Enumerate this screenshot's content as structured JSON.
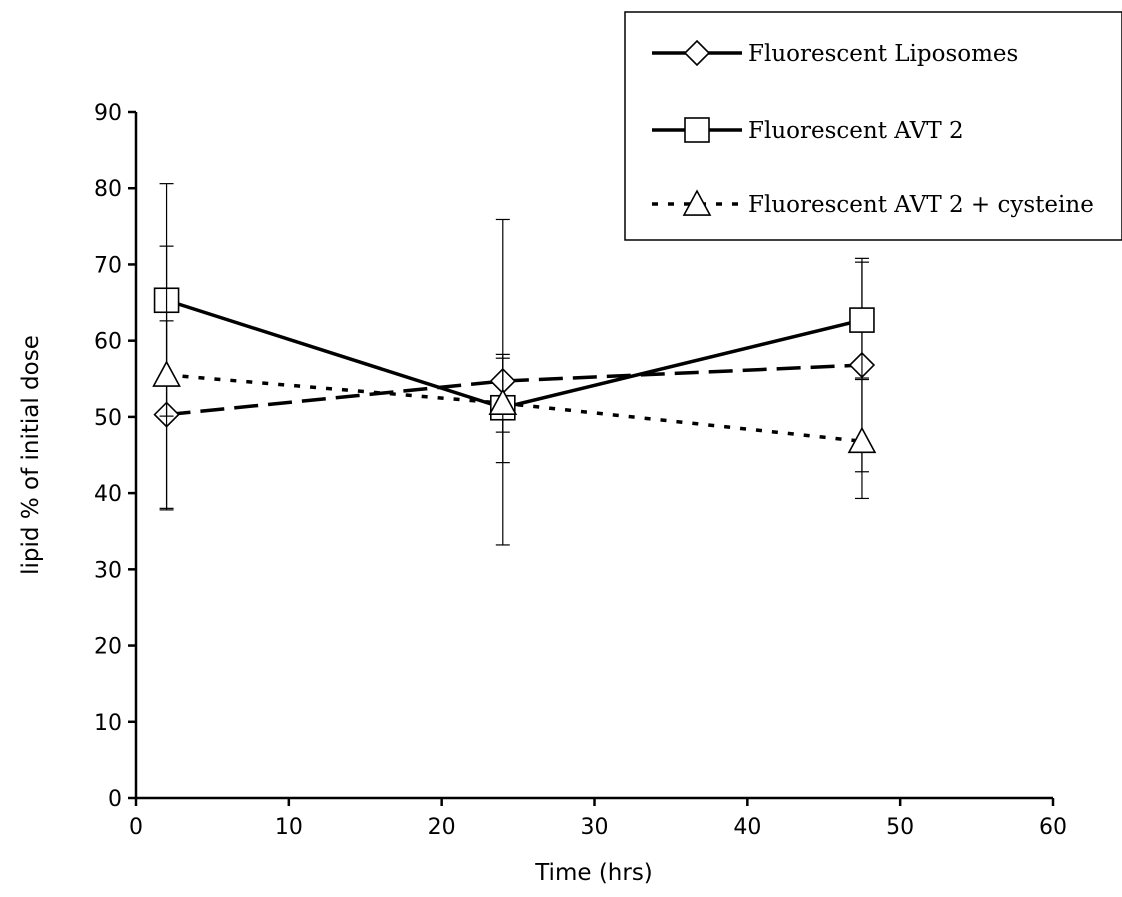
{
  "chart_data": {
    "type": "line",
    "title": "",
    "xlabel": "Time (hrs)",
    "ylabel": "lipid % of initial dose",
    "xlim": [
      0,
      60
    ],
    "ylim": [
      0,
      90
    ],
    "x_ticks": [
      0,
      10,
      20,
      30,
      40,
      50,
      60
    ],
    "y_ticks": [
      0,
      10,
      20,
      30,
      40,
      50,
      60,
      70,
      80,
      90
    ],
    "grid": false,
    "legend_position": "top-right",
    "series": [
      {
        "name": "Fluorescent Liposomes",
        "marker": "diamond",
        "line_style": "long-dash",
        "color": "#000000",
        "x": [
          2,
          24,
          47.5
        ],
        "y": [
          50.3,
          54.7,
          56.8
        ],
        "error_low": [
          37.8,
          44.0,
          42.8
        ],
        "error_high": [
          62.6,
          58.2,
          70.8
        ]
      },
      {
        "name": "Fluorescent AVT 2",
        "marker": "square",
        "line_style": "solid",
        "color": "#000000",
        "x": [
          2,
          24,
          47.5
        ],
        "y": [
          65.3,
          51.2,
          62.7
        ],
        "error_low": [
          50.1,
          33.2,
          55.1
        ],
        "error_high": [
          80.6,
          75.9,
          70.3
        ]
      },
      {
        "name": "Fluorescent AVT 2 + cysteine",
        "marker": "triangle",
        "line_style": "dotted",
        "color": "#000000",
        "x": [
          2,
          24,
          47.5
        ],
        "y": [
          55.5,
          51.8,
          46.8
        ],
        "error_low": [
          38.0,
          48.0,
          39.3
        ],
        "error_high": [
          72.4,
          57.7,
          54.9
        ]
      }
    ]
  }
}
